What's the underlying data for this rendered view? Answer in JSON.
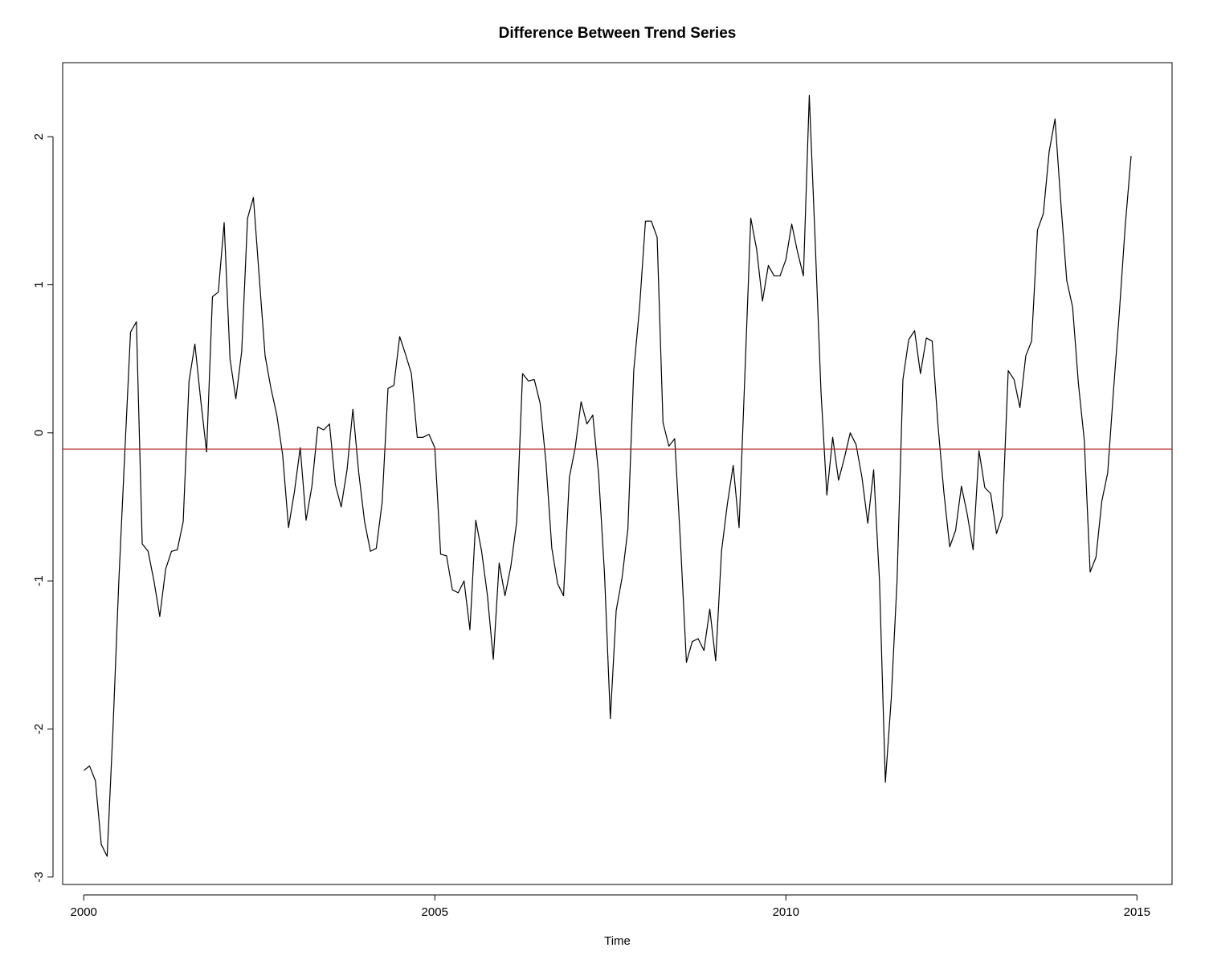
{
  "chart_data": {
    "type": "line",
    "title": "Difference Between Trend Series",
    "xlabel": "Time",
    "ylabel": "",
    "xlim": [
      1999.7,
      2015.5
    ],
    "ylim": [
      -3.05,
      2.5
    ],
    "x_ticks": [
      2000,
      2005,
      2010,
      2015
    ],
    "y_ticks": [
      -3,
      -2,
      -1,
      0,
      1,
      2
    ],
    "grid": false,
    "legend": "none",
    "x_start": 2000,
    "x_step": 0.08333333,
    "series": [
      {
        "color": "#000000",
        "values": [
          -2.28,
          -2.25,
          -2.35,
          -2.78,
          -2.86,
          -2.0,
          -1.0,
          -0.15,
          0.68,
          0.75,
          -0.75,
          -0.8,
          -1.0,
          -1.24,
          -0.92,
          -0.8,
          -0.79,
          -0.6,
          0.35,
          0.6,
          0.22,
          -0.13,
          0.92,
          0.95,
          1.42,
          0.5,
          0.23,
          0.55,
          1.45,
          1.59,
          1.05,
          0.52,
          0.3,
          0.12,
          -0.15,
          -0.64,
          -0.4,
          -0.1,
          -0.59,
          -0.36,
          0.04,
          0.02,
          0.06,
          -0.35,
          -0.5,
          -0.25,
          0.16,
          -0.27,
          -0.6,
          -0.8,
          -0.78,
          -0.47,
          0.3,
          0.32,
          0.65,
          0.53,
          0.4,
          -0.03,
          -0.03,
          -0.01,
          -0.1,
          -0.82,
          -0.83,
          -1.06,
          -1.08,
          -1.0,
          -1.33,
          -0.59,
          -0.8,
          -1.1,
          -1.53,
          -0.88,
          -1.1,
          -0.9,
          -0.6,
          0.4,
          0.35,
          0.36,
          0.2,
          -0.2,
          -0.78,
          -1.02,
          -1.1,
          -0.3,
          -0.1,
          0.21,
          0.06,
          0.12,
          -0.28,
          -0.95,
          -1.93,
          -1.2,
          -0.98,
          -0.65,
          0.42,
          0.85,
          1.43,
          1.43,
          1.32,
          0.07,
          -0.09,
          -0.04,
          -0.75,
          -1.55,
          -1.41,
          -1.39,
          -1.47,
          -1.19,
          -1.54,
          -0.8,
          -0.48,
          -0.22,
          -0.64,
          0.4,
          1.45,
          1.24,
          0.89,
          1.13,
          1.06,
          1.06,
          1.17,
          1.41,
          1.22,
          1.06,
          2.28,
          1.3,
          0.28,
          -0.42,
          -0.03,
          -0.32,
          -0.17,
          0.0,
          -0.08,
          -0.3,
          -0.61,
          -0.25,
          -1.0,
          -2.36,
          -1.8,
          -1.0,
          0.36,
          0.63,
          0.69,
          0.4,
          0.64,
          0.62,
          0.05,
          -0.4,
          -0.77,
          -0.66,
          -0.36,
          -0.55,
          -0.79,
          -0.12,
          -0.37,
          -0.41,
          -0.68,
          -0.56,
          0.42,
          0.36,
          0.17,
          0.52,
          0.62,
          1.37,
          1.48,
          1.9,
          2.12,
          1.55,
          1.03,
          0.85,
          0.33,
          -0.05,
          -0.94,
          -0.84,
          -0.46,
          -0.27,
          0.29,
          0.82,
          1.4,
          1.87
        ]
      },
      {
        "color": "#b22222",
        "horizontal_value": -0.11
      }
    ]
  }
}
